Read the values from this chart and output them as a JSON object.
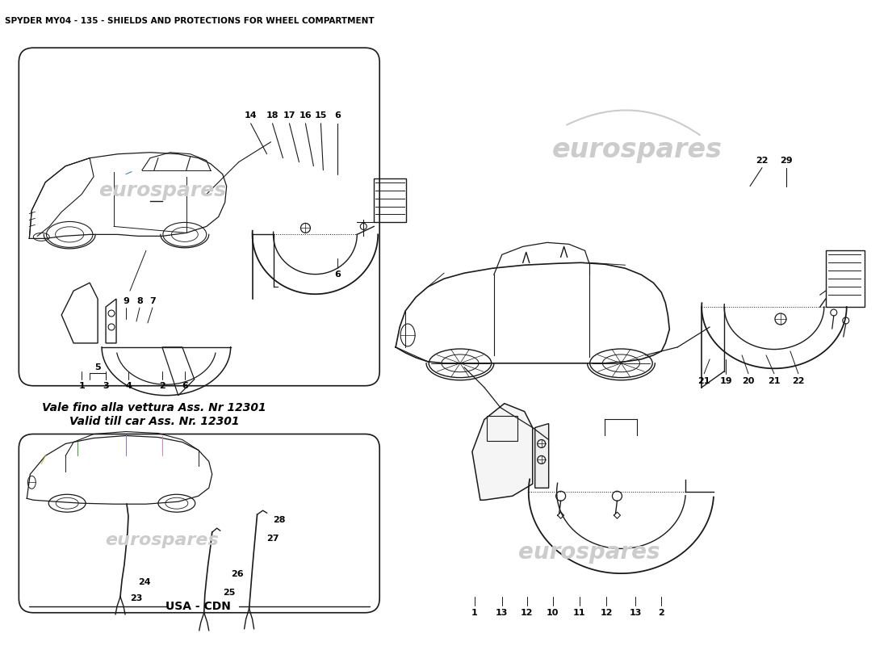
{
  "title": "SPYDER MY04 - 135 - SHIELDS AND PROTECTIONS FOR WHEEL COMPARTMENT",
  "title_fontsize": 7.5,
  "title_fontweight": "bold",
  "background_color": "#ffffff",
  "line_color": "#1a1a1a",
  "text_color": "#000000",
  "watermark_color": "#cccccc",
  "watermark_text": "eurospares",
  "note_text1": "Vale fino alla vettura Ass. Nr 12301",
  "note_text2": "Valid till car Ass. Nr. 12301",
  "usa_cdn_text": "USA - CDN",
  "label_fontsize": 8,
  "note_fontsize": 10
}
